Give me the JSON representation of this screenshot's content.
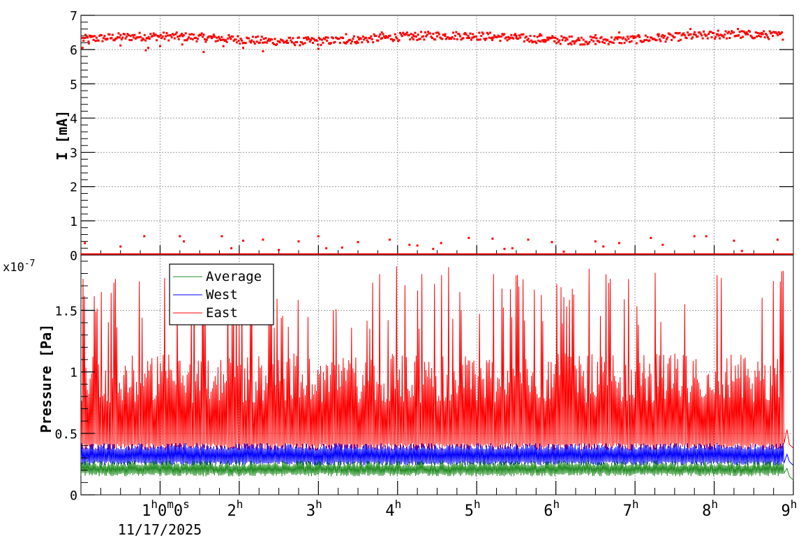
{
  "chart_data": [
    {
      "type": "scatter",
      "panel": "top",
      "ylabel": "I [mA]",
      "ylim": [
        0,
        7
      ],
      "yticks": [
        "0",
        "1",
        "2",
        "3",
        "4",
        "5",
        "6",
        "7"
      ],
      "xlim_hours": [
        0,
        9
      ],
      "grid": true,
      "series": [
        {
          "color": "#ff0000",
          "marker": "square",
          "band_level": 6.3,
          "band_spread": 0.12,
          "baseline_level": 0.0,
          "x_hours": [
            0.02,
            0.1,
            0.5,
            0.82,
            0.85,
            1.0,
            1.28,
            1.55,
            1.8,
            2.05,
            2.3,
            2.6,
            3.0,
            3.35,
            3.5,
            3.8,
            4.2,
            4.6,
            4.95,
            5.2,
            5.5,
            5.8,
            6.2,
            6.5,
            6.8,
            7.05,
            7.3,
            7.7,
            8.05,
            8.3,
            8.6
          ],
          "y_values": [
            6.05,
            6.18,
            6.12,
            5.98,
            6.05,
            6.1,
            6.15,
            5.93,
            6.1,
            6.05,
            5.95,
            6.2,
            6.02,
            6.45,
            6.2,
            6.5,
            6.3,
            6.4,
            6.45,
            6.35,
            6.4,
            6.45,
            6.38,
            6.42,
            6.5,
            6.4,
            6.45,
            6.6,
            6.55,
            6.6,
            6.45
          ],
          "baseline_outliers_x": [
            0.05,
            0.5,
            0.8,
            1.25,
            1.3,
            1.78,
            1.9,
            2.05,
            2.3,
            2.5,
            2.75,
            3.0,
            3.1,
            3.3,
            3.5,
            3.9,
            4.15,
            4.25,
            4.45,
            4.55,
            4.9,
            5.2,
            5.35,
            5.45,
            5.65,
            5.95,
            6.1,
            6.5,
            6.6,
            6.8,
            7.2,
            7.35,
            7.75,
            7.9,
            8.25,
            8.35,
            8.8
          ],
          "baseline_outliers_y": [
            0.35,
            0.25,
            0.55,
            0.55,
            0.4,
            0.55,
            0.2,
            0.42,
            0.45,
            0.15,
            0.4,
            0.55,
            0.2,
            0.22,
            0.38,
            0.45,
            0.3,
            0.28,
            0.18,
            0.35,
            0.5,
            0.48,
            0.18,
            0.2,
            0.45,
            0.38,
            0.1,
            0.4,
            0.25,
            0.35,
            0.5,
            0.3,
            0.55,
            0.55,
            0.42,
            0.12,
            0.45
          ]
        }
      ]
    },
    {
      "type": "line",
      "panel": "bottom",
      "ylabel": "Pressure [Pa]",
      "y_exponent_label": "x10",
      "y_exponent": "-7",
      "ylim": [
        0,
        1.95
      ],
      "yticks": [
        "0",
        "0.5",
        "1",
        "1.5"
      ],
      "ytick_values": [
        0,
        0.5,
        1,
        1.5
      ],
      "xlim_hours": [
        0,
        9
      ],
      "xticks": [
        {
          "h": 1,
          "label": "1",
          "suffix": "h",
          "extra": "0",
          "extra_suffix": "m",
          "extra2": "0",
          "extra2_suffix": "s"
        },
        {
          "h": 2,
          "label": "2",
          "suffix": "h"
        },
        {
          "h": 3,
          "label": "3",
          "suffix": "h"
        },
        {
          "h": 4,
          "label": "4",
          "suffix": "h"
        },
        {
          "h": 5,
          "label": "5",
          "suffix": "h"
        },
        {
          "h": 6,
          "label": "6",
          "suffix": "h"
        },
        {
          "h": 7,
          "label": "7",
          "suffix": "h"
        },
        {
          "h": 8,
          "label": "8",
          "suffix": "h"
        },
        {
          "h": 9,
          "label": "9",
          "suffix": "h"
        }
      ],
      "date_label": "11/17/2025",
      "grid": true,
      "legend_position": "top-left",
      "series": [
        {
          "name": "Average",
          "color": "#228b22",
          "band_low": 0.15,
          "band_high": 0.28,
          "end_level": 0.12
        },
        {
          "name": "West",
          "color": "#0000ff",
          "band_low": 0.24,
          "band_high": 0.42,
          "end_level": 0.24
        },
        {
          "name": "East",
          "color": "#ff0000",
          "band_low": 0.36,
          "band_high": 1.05,
          "spike_max": 1.86,
          "end_level": 0.38
        }
      ],
      "end_hour": 8.88
    }
  ]
}
